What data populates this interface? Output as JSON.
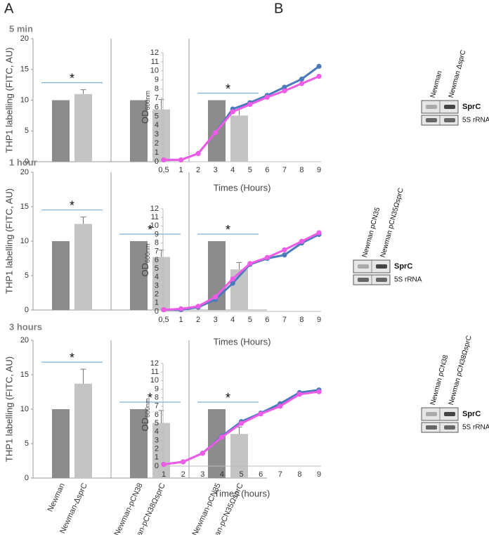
{
  "panel_labels": {
    "a": "A",
    "b": "B"
  },
  "chart_data": [
    {
      "type": "bar",
      "title": "5 min",
      "y_label": "THP1 labelling (FITC, AU)",
      "categories": [
        null,
        null,
        null,
        null,
        null,
        null
      ],
      "values": [
        10,
        11,
        10,
        8.5,
        10,
        7.5
      ],
      "errors": [
        0,
        0.7,
        0,
        1.6,
        0,
        1.4
      ],
      "colors": [
        "#8c8c8c",
        "#c4c4c4",
        "#8c8c8c",
        "#c4c4c4",
        "#8c8c8c",
        "#c4c4c4"
      ],
      "significance": [
        "*",
        null,
        "*"
      ],
      "ylim": [
        0,
        20
      ],
      "yticks": [
        0,
        5,
        10,
        15,
        20
      ]
    },
    {
      "type": "bar",
      "title": "1 hour",
      "y_label": "THP1 labelling (FITC, AU)",
      "categories": [
        null,
        null,
        null,
        null,
        null,
        null
      ],
      "values": [
        10,
        12.5,
        10,
        7.7,
        10,
        5.9
      ],
      "errors": [
        0,
        1,
        0,
        1,
        0,
        1
      ],
      "colors": [
        "#8c8c8c",
        "#c4c4c4",
        "#8c8c8c",
        "#c4c4c4",
        "#8c8c8c",
        "#c4c4c4"
      ],
      "significance": [
        "*",
        "*",
        "*"
      ],
      "ylim": [
        0,
        20
      ],
      "yticks": [
        0,
        5,
        10,
        15,
        20
      ]
    },
    {
      "type": "bar",
      "title": "3 hours",
      "y_label": "THP1 labelling (FITC, AU)",
      "categories": [
        "Newman",
        "Newman-ΔsprC",
        "Newman-pCN38",
        "Newman-pCN38ΩsprC",
        "Newman-pCN35",
        "Newman-pCN35ΩsprC"
      ],
      "values": [
        10,
        13.7,
        10,
        8,
        10,
        6.4
      ],
      "errors": [
        0,
        2.1,
        0,
        1.8,
        0,
        1
      ],
      "colors": [
        "#8c8c8c",
        "#c4c4c4",
        "#8c8c8c",
        "#c4c4c4",
        "#8c8c8c",
        "#c4c4c4"
      ],
      "significance": [
        "*",
        "*",
        "*"
      ],
      "ylim": [
        0,
        20
      ],
      "yticks": [
        0,
        5,
        10,
        15,
        20
      ]
    },
    {
      "type": "line",
      "x_label": "Times (Hours)",
      "y_label": "OD",
      "y_label_sub": "600nm",
      "categories": [
        "0,5",
        "1",
        "2",
        "3",
        "4",
        "5",
        "6",
        "7",
        "8",
        "9"
      ],
      "series": [
        {
          "color": "#4a7abc",
          "values": [
            0.2,
            0.2,
            0.9,
            3.2,
            5.8,
            6.5,
            7.3,
            8.2,
            9.1,
            10.5
          ]
        },
        {
          "color": "#ee5be6",
          "values": [
            0.2,
            0.2,
            0.9,
            3.2,
            5.5,
            6.3,
            7.1,
            7.8,
            8.6,
            9.4
          ]
        }
      ],
      "ylim": [
        0,
        12
      ],
      "yticks": [
        0,
        1,
        2,
        3,
        4,
        5,
        6,
        7,
        8,
        9,
        10,
        11,
        12
      ],
      "blot": {
        "lanes": [
          "Newman",
          "Newman ΔsprC"
        ],
        "bands": [
          "SprC",
          "5S rRNA"
        ]
      }
    },
    {
      "type": "line",
      "x_label": "Times (Hours)",
      "y_label": "OD",
      "y_label_sub": "600nm",
      "categories": [
        "0,5",
        "1",
        "2",
        "3",
        "4",
        "5",
        "6",
        "7",
        "8",
        "9"
      ],
      "series": [
        {
          "color": "#4a7abc",
          "values": [
            0.2,
            0.2,
            0.5,
            1.4,
            3.3,
            5.5,
            6.2,
            6.6,
            8,
            9
          ]
        },
        {
          "color": "#ee5be6",
          "values": [
            0.2,
            0.3,
            0.6,
            1.7,
            3.8,
            5.6,
            6.3,
            7.2,
            8.2,
            9.2
          ]
        }
      ],
      "ylim": [
        0,
        12
      ],
      "yticks": [
        0,
        1,
        2,
        3,
        4,
        5,
        6,
        7,
        8,
        9,
        10,
        11,
        12
      ],
      "blot": {
        "lanes": [
          "Newman pCN35",
          "Newman pCN35ΩsprC"
        ],
        "bands": [
          "SprC",
          "5S rRNA"
        ]
      }
    },
    {
      "type": "line",
      "x_label": "Times (hours)",
      "y_label": "OD",
      "y_label_sub": "600nm",
      "categories": [
        "1",
        "2",
        "3",
        "4",
        "5",
        "6",
        "7",
        "8",
        "9"
      ],
      "series": [
        {
          "color": "#4a7abc",
          "values": [
            0.2,
            0.5,
            1.5,
            3.5,
            5.2,
            6.2,
            7.3,
            8.6,
            8.9
          ]
        },
        {
          "color": "#ee5be6",
          "values": [
            0.2,
            0.5,
            1.5,
            3.4,
            5,
            6.1,
            7,
            8.4,
            8.7
          ]
        }
      ],
      "ylim": [
        0,
        12
      ],
      "yticks": [
        0,
        1,
        2,
        3,
        4,
        5,
        6,
        7,
        8,
        9,
        10,
        11,
        12
      ],
      "blot": {
        "lanes": [
          "Newman pCN38",
          "Newman pCN38ΩsprC"
        ],
        "bands": [
          "SprC",
          "5S rRNA"
        ]
      }
    }
  ]
}
